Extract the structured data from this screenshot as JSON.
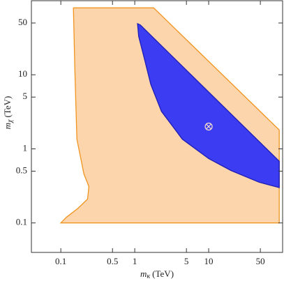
{
  "chart_data": {
    "type": "region",
    "xscale": "log",
    "yscale": "log",
    "xlim": [
      0.04,
      100
    ],
    "ylim": [
      0.04,
      100
    ],
    "xticks": [
      0.1,
      0.5,
      1,
      5,
      10,
      50
    ],
    "yticks": [
      0.1,
      0.5,
      1,
      5,
      10,
      50
    ],
    "xlabel": {
      "symbol": "m",
      "subscript": "κ",
      "unit": "(TeV)"
    },
    "ylabel": {
      "symbol": "m",
      "subscript": "χ",
      "unit": "(TeV)"
    },
    "series": [
      {
        "color": "#fcd5ad",
        "edge_color": "#f0941e",
        "x": [
          0.1,
          90,
          90,
          1.8,
          0.148,
          0.155,
          0.165,
          0.205,
          0.24,
          0.23,
          0.17,
          0.12
        ],
        "values": [
          0.1,
          0.1,
          1.8,
          80,
          80,
          11.4,
          1.35,
          0.46,
          0.31,
          0.21,
          0.157,
          0.12
        ]
      },
      {
        "color": "#3c3cf2",
        "edge_color": "#1e1eb4",
        "x": [
          1.09,
          1.19,
          90,
          90,
          48,
          20,
          10,
          4.4,
          2.3,
          1.65,
          1.33,
          1.13
        ],
        "values": [
          49,
          47,
          0.68,
          0.3,
          0.355,
          0.51,
          0.74,
          1.35,
          3.2,
          7.4,
          17.5,
          33
        ]
      }
    ],
    "marker": {
      "x": 10,
      "y": 2,
      "color": "#fbe3c6"
    }
  }
}
